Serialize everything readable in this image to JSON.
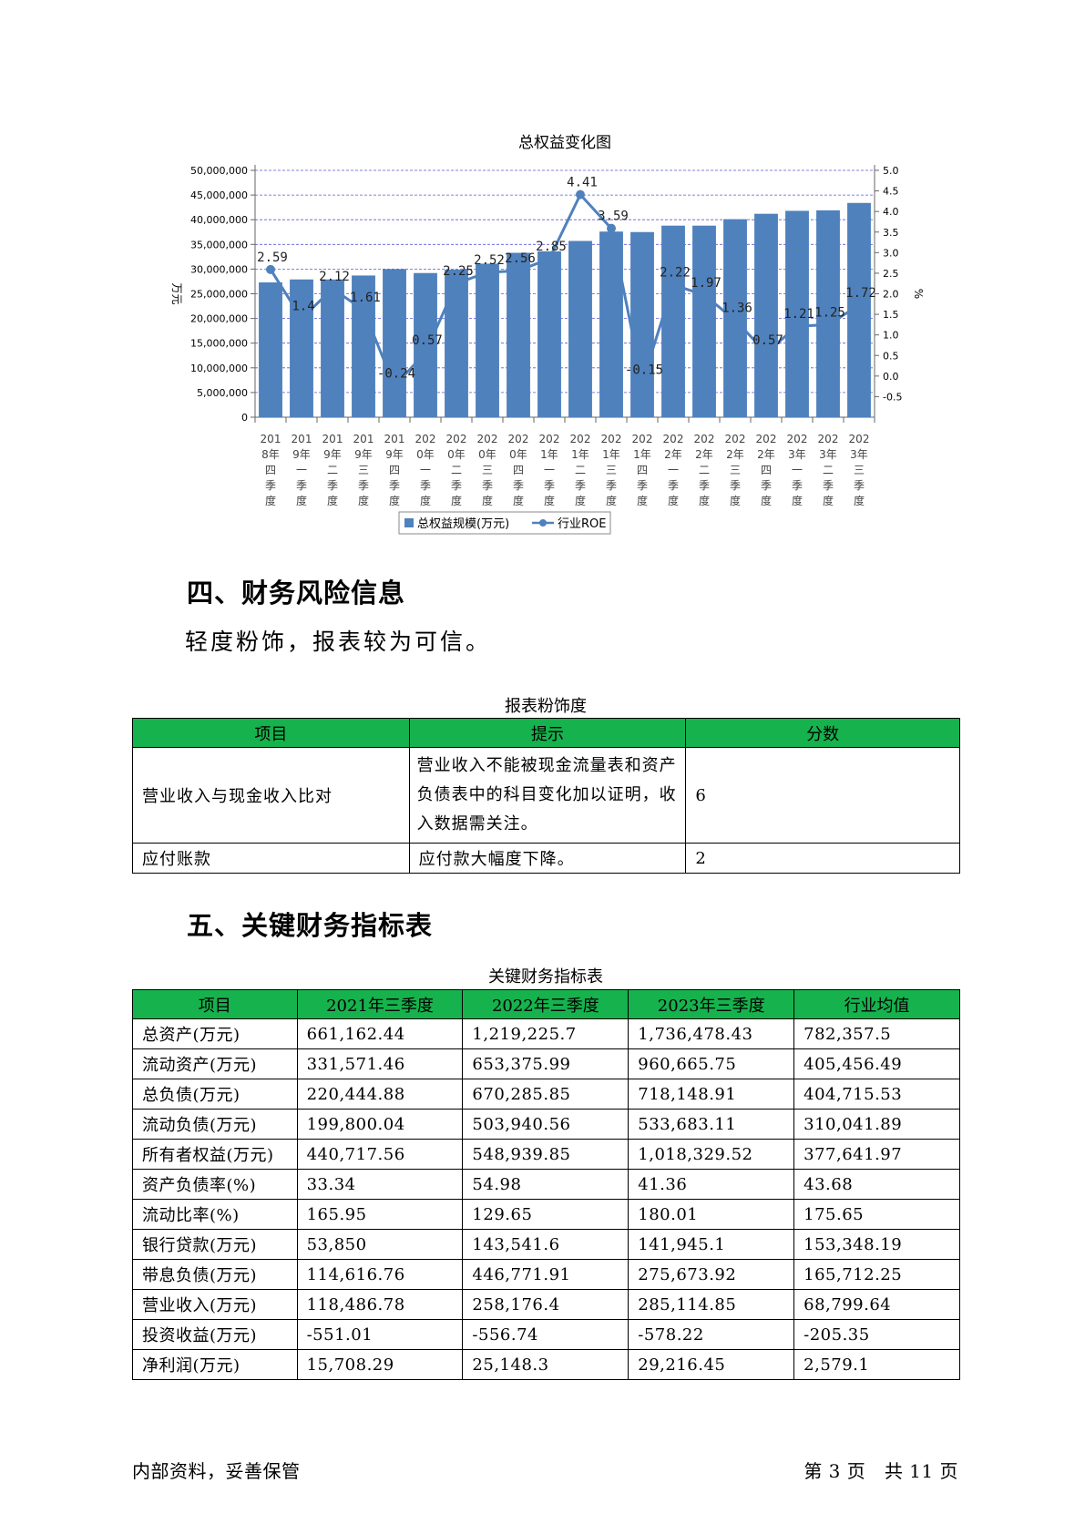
{
  "chart_data": {
    "type": "bar",
    "title": "总权益变化图",
    "categories": [
      "2018年四季度",
      "2019年一季度",
      "2019年二季度",
      "2019年三季度",
      "2019年四季度",
      "2020年一季度",
      "2020年二季度",
      "2020年三季度",
      "2020年四季度",
      "2021年一季度",
      "2021年二季度",
      "2021年三季度",
      "2021年四季度",
      "2022年一季度",
      "2022年二季度",
      "2022年三季度",
      "2022年四季度",
      "2023年一季度",
      "2023年二季度",
      "2023年三季度"
    ],
    "category_lines": [
      [
        "201",
        "8年",
        "四",
        "季",
        "度"
      ],
      [
        "201",
        "9年",
        "一",
        "季",
        "度"
      ],
      [
        "201",
        "9年",
        "二",
        "季",
        "度"
      ],
      [
        "201",
        "9年",
        "三",
        "季",
        "度"
      ],
      [
        "201",
        "9年",
        "四",
        "季",
        "度"
      ],
      [
        "202",
        "0年",
        "一",
        "季",
        "度"
      ],
      [
        "202",
        "0年",
        "二",
        "季",
        "度"
      ],
      [
        "202",
        "0年",
        "三",
        "季",
        "度"
      ],
      [
        "202",
        "0年",
        "四",
        "季",
        "度"
      ],
      [
        "202",
        "1年",
        "一",
        "季",
        "度"
      ],
      [
        "202",
        "1年",
        "二",
        "季",
        "度"
      ],
      [
        "202",
        "1年",
        "三",
        "季",
        "度"
      ],
      [
        "202",
        "1年",
        "四",
        "季",
        "度"
      ],
      [
        "202",
        "2年",
        "一",
        "季",
        "度"
      ],
      [
        "202",
        "2年",
        "二",
        "季",
        "度"
      ],
      [
        "202",
        "2年",
        "三",
        "季",
        "度"
      ],
      [
        "202",
        "2年",
        "四",
        "季",
        "度"
      ],
      [
        "202",
        "3年",
        "一",
        "季",
        "度"
      ],
      [
        "202",
        "3年",
        "二",
        "季",
        "度"
      ],
      [
        "202",
        "3年",
        "三",
        "季",
        "度"
      ]
    ],
    "series": [
      {
        "name": "总权益规模(万元)",
        "type": "bar",
        "axis": "left",
        "color": "#4f81bd",
        "values": [
          27300000,
          27900000,
          27900000,
          28700000,
          30000000,
          29200000,
          29900000,
          31100000,
          33300000,
          33600000,
          35700000,
          37600000,
          37500000,
          38800000,
          38800000,
          40100000,
          41200000,
          41800000,
          41900000,
          43400000
        ]
      },
      {
        "name": "行业ROE",
        "type": "line",
        "axis": "right",
        "color": "#4f81bd",
        "values": [
          2.59,
          1.4,
          2.12,
          1.61,
          -0.24,
          0.57,
          2.25,
          2.52,
          2.56,
          2.85,
          4.41,
          3.59,
          -0.15,
          2.22,
          1.97,
          1.36,
          0.57,
          1.21,
          1.25,
          1.72
        ],
        "labels": [
          "2.59",
          "1.4",
          "2.12",
          "1.61",
          "-0.24",
          "0.57",
          "2.25",
          "2.52",
          "2.56",
          "2.85",
          "4.41",
          "3.59",
          "-0.15",
          "2.22",
          "1.97",
          "1.36",
          "0.57",
          "1.21",
          "1.25",
          "1.72"
        ]
      }
    ],
    "ylabel": "万元",
    "y2label": "%",
    "ylim": [
      0,
      50000000
    ],
    "y_ticks": [
      "0",
      "5,000,000",
      "10,000,000",
      "15,000,000",
      "20,000,000",
      "25,000,000",
      "30,000,000",
      "35,000,000",
      "40,000,000",
      "45,000,000",
      "50,000,000"
    ],
    "y2lim": [
      -1.0,
      5.0
    ],
    "y2_ticks": [
      "-0.5",
      "0.0",
      "0.5",
      "1.0",
      "1.5",
      "2.0",
      "2.5",
      "3.0",
      "3.5",
      "4.0",
      "4.5",
      "5.0"
    ],
    "grid": true,
    "legend": "bottom",
    "legend_entries": [
      "总权益规模(万元)",
      "行业ROE"
    ]
  },
  "section4": {
    "heading": "四、财务风险信息",
    "text": "轻度粉饰，报表较为可信。",
    "table_caption": "报表粉饰度",
    "headers": [
      "项目",
      "提示",
      "分数"
    ],
    "rows": [
      {
        "item": "营业收入与现金收入比对",
        "hint": "营业收入不能被现金流量表和资产负债表中的科目变化加以证明，收入数据需关注。",
        "score": "6"
      },
      {
        "item": "应付账款",
        "hint": "应付款大幅度下降。",
        "score": "2"
      }
    ]
  },
  "section5": {
    "heading": "五、关键财务指标表",
    "table_caption": "关键财务指标表",
    "headers": [
      "项目",
      "2021年三季度",
      "2022年三季度",
      "2023年三季度",
      "行业均值"
    ],
    "rows": [
      [
        "总资产(万元)",
        "661,162.44",
        "1,219,225.7",
        "1,736,478.43",
        "782,357.5"
      ],
      [
        "流动资产(万元)",
        "331,571.46",
        "653,375.99",
        "960,665.75",
        "405,456.49"
      ],
      [
        "总负债(万元)",
        "220,444.88",
        "670,285.85",
        "718,148.91",
        "404,715.53"
      ],
      [
        "流动负债(万元)",
        "199,800.04",
        "503,940.56",
        "533,683.11",
        "310,041.89"
      ],
      [
        "所有者权益(万元)",
        "440,717.56",
        "548,939.85",
        "1,018,329.52",
        "377,641.97"
      ],
      [
        "资产负债率(%)",
        "33.34",
        "54.98",
        "41.36",
        "43.68"
      ],
      [
        "流动比率(%)",
        "165.95",
        "129.65",
        "180.01",
        "175.65"
      ],
      [
        "银行贷款(万元)",
        "53,850",
        "143,541.6",
        "141,945.1",
        "153,348.19"
      ],
      [
        "带息负债(万元)",
        "114,616.76",
        "446,771.91",
        "275,673.92",
        "165,712.25"
      ],
      [
        "营业收入(万元)",
        "118,486.78",
        "258,176.4",
        "285,114.85",
        "68,799.64"
      ],
      [
        "投资收益(万元)",
        "-551.01",
        "-556.74",
        "-578.22",
        "-205.35"
      ],
      [
        "净利润(万元)",
        "15,708.29",
        "25,148.3",
        "29,216.45",
        "2,579.1"
      ]
    ]
  },
  "footer": {
    "left": "内部资料，妥善保管",
    "right": "第 3 页   共 11 页"
  }
}
